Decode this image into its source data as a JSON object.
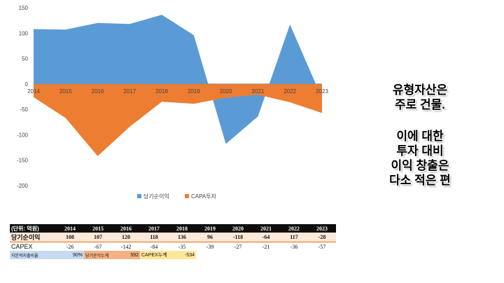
{
  "chart_data": {
    "type": "area",
    "x": [
      "2014",
      "2015",
      "2016",
      "2017",
      "2018",
      "2019",
      "2020",
      "2021",
      "2022",
      "2023"
    ],
    "series": [
      {
        "name": "당기순이익",
        "values": [
          108,
          107,
          120,
          118,
          136,
          96,
          -118,
          -64,
          117,
          -28
        ],
        "color": "#5b9bd5"
      },
      {
        "name": "CAPA투자",
        "values": [
          -26,
          -67,
          -142,
          -84,
          -35,
          -39,
          -27,
          -21,
          -36,
          -57
        ],
        "color": "#ed7d31"
      }
    ],
    "ylim": [
      -200,
      150
    ],
    "yticks": [
      150,
      100,
      50,
      0,
      -50,
      -100,
      -150,
      -200
    ],
    "legend_position": "bottom",
    "grid": false
  },
  "side_note": {
    "lines_a": [
      "유형자산은",
      "주로 건물."
    ],
    "lines_b": [
      "이에 대한",
      "투자 대비",
      "이익 창출은",
      "다소 적은 편"
    ]
  },
  "table": {
    "header_label": "(단위: 억원)",
    "years": [
      "2014",
      "2015",
      "2016",
      "2017",
      "2018",
      "2019",
      "2020",
      "2021",
      "2022",
      "2023"
    ],
    "rows": [
      {
        "label": "당기순이익",
        "values": [
          "108",
          "107",
          "120",
          "118",
          "136",
          "96",
          "-118",
          "-64",
          "117",
          "-28"
        ]
      },
      {
        "label": "CAPEX",
        "values": [
          "-26",
          "-67",
          "-142",
          "-84",
          "-35",
          "-39",
          "-27",
          "-21",
          "-36",
          "-57"
        ]
      }
    ],
    "summary": {
      "label1": "자본적지출비율",
      "value1": "90%",
      "label2": "당기순익누계",
      "value2": "592",
      "label3": "CAPEX누계",
      "value3": "-534"
    }
  }
}
